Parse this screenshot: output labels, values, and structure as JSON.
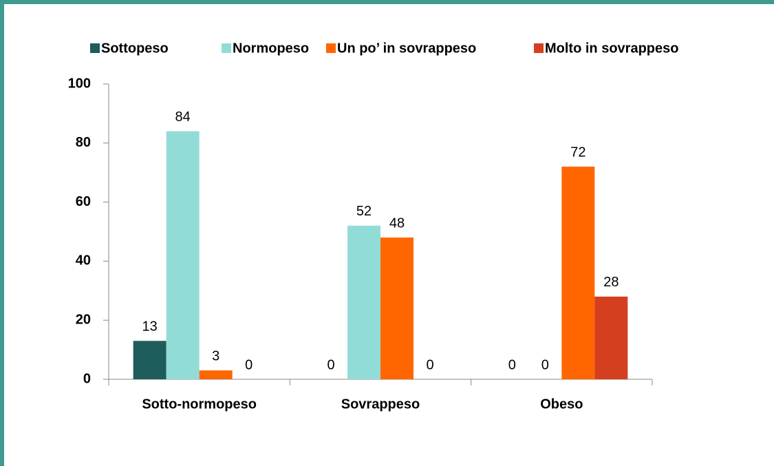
{
  "chart_data": {
    "type": "bar",
    "categories": [
      "Sotto-normopeso",
      "Sovrappeso",
      "Obeso"
    ],
    "series": [
      {
        "name": "Sottopeso",
        "color": "#1f5c5c",
        "values": [
          13,
          0,
          0
        ]
      },
      {
        "name": "Normopeso",
        "color": "#92dcd8",
        "values": [
          84,
          52,
          0
        ]
      },
      {
        "name": "Un po’ in sovrappeso",
        "color": "#ff6600",
        "values": [
          3,
          48,
          72
        ]
      },
      {
        "name": "Molto in sovrappeso",
        "color": "#d43f1f",
        "values": [
          0,
          0,
          28
        ]
      }
    ],
    "ylim": [
      0,
      100
    ],
    "yticks": [
      0,
      20,
      40,
      60,
      80,
      100
    ],
    "legend": "top"
  }
}
